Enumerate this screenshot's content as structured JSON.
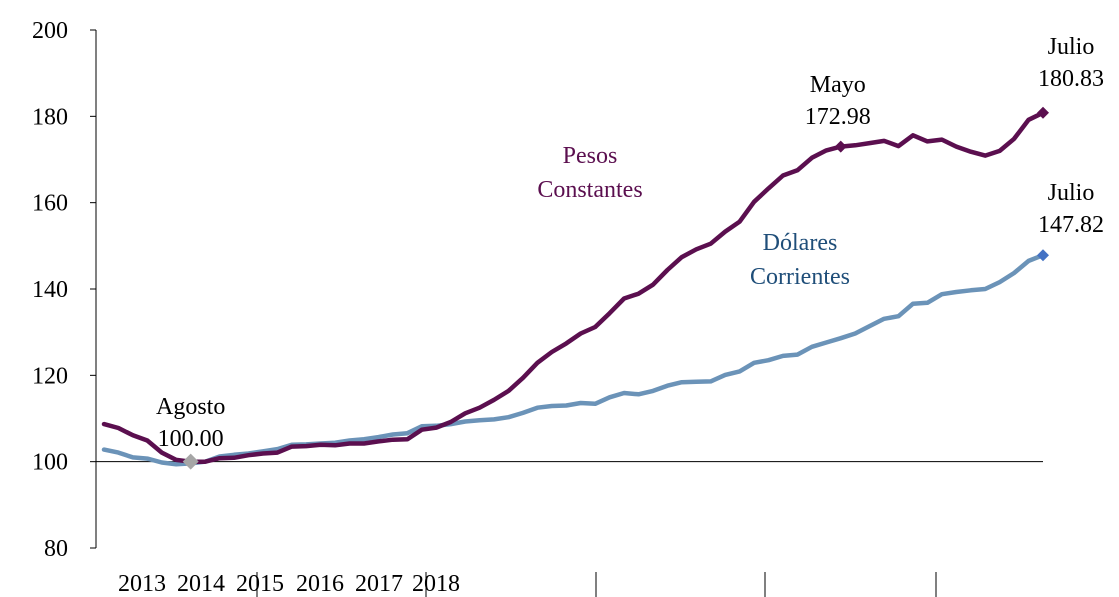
{
  "chart_data": {
    "type": "line",
    "title": "",
    "xlabel": "",
    "ylabel": "",
    "ylim": [
      80,
      200
    ],
    "yticks": [
      80,
      100,
      120,
      140,
      160,
      180,
      200
    ],
    "x_tick_labels": [
      "2013",
      "2014",
      "2015",
      "2016",
      "2017",
      "2018"
    ],
    "reference_line": 100,
    "colors": {
      "pesos": "#5b0f4f",
      "dolares": "#6b93b8",
      "dolares_marker": "#4472c4",
      "agosto_marker": "#a6a6a6",
      "dolares_label": "#1f4e79",
      "pesos_label": "#5b0f4f"
    },
    "series": [
      {
        "name": "Pesos Constantes",
        "label_lines": [
          "Pesos",
          "Constantes"
        ],
        "values": [
          108.7,
          107.8,
          106.1,
          104.9,
          102.1,
          100.4,
          100.0,
          100.0,
          100.8,
          100.9,
          101.5,
          101.9,
          102.1,
          103.5,
          103.6,
          103.9,
          103.8,
          104.2,
          104.2,
          104.7,
          105.1,
          105.2,
          107.4,
          107.9,
          109.2,
          111.2,
          112.5,
          114.3,
          116.4,
          119.4,
          122.9,
          125.4,
          127.4,
          129.7,
          131.2,
          134.4,
          137.8,
          138.9,
          141.0,
          144.4,
          147.4,
          149.2,
          150.5,
          153.3,
          155.6,
          160.2,
          163.3,
          166.3,
          167.5,
          170.4,
          172.1,
          172.98,
          173.3,
          173.8,
          174.3,
          173.1,
          175.6,
          174.2,
          174.6,
          173.0,
          171.8,
          170.9,
          172.0,
          174.8,
          179.2,
          180.83
        ]
      },
      {
        "name": "Dólares Corrientes",
        "label_lines": [
          "Dólares",
          "Corrientes"
        ],
        "values": [
          102.8,
          102.1,
          101.0,
          100.7,
          99.8,
          99.4,
          99.6,
          100.0,
          101.2,
          101.6,
          101.9,
          102.4,
          102.9,
          103.9,
          104.0,
          104.2,
          104.4,
          104.9,
          105.2,
          105.7,
          106.3,
          106.6,
          108.2,
          108.3,
          108.7,
          109.3,
          109.6,
          109.8,
          110.3,
          111.3,
          112.5,
          112.9,
          113.0,
          113.6,
          113.4,
          114.9,
          115.9,
          115.6,
          116.4,
          117.6,
          118.4,
          118.5,
          118.6,
          120.1,
          120.9,
          122.9,
          123.5,
          124.5,
          124.8,
          126.6,
          127.6,
          128.6,
          129.7,
          131.4,
          133.1,
          133.7,
          136.6,
          136.8,
          138.8,
          139.3,
          139.7,
          140.0,
          141.6,
          143.7,
          146.5,
          147.82
        ]
      }
    ],
    "annotations": [
      {
        "series": 0,
        "index": 6,
        "lines": [
          "Agosto",
          "100.00"
        ],
        "marker": "agosto"
      },
      {
        "series": 0,
        "index": 51,
        "lines": [
          "Mayo",
          "172.98"
        ],
        "marker": "pesos"
      },
      {
        "series": 0,
        "index": 65,
        "lines": [
          "Julio",
          "180.83"
        ],
        "marker": "pesos"
      },
      {
        "series": 1,
        "index": 65,
        "lines": [
          "Julio",
          "147.82"
        ],
        "marker": "dolares"
      }
    ]
  }
}
